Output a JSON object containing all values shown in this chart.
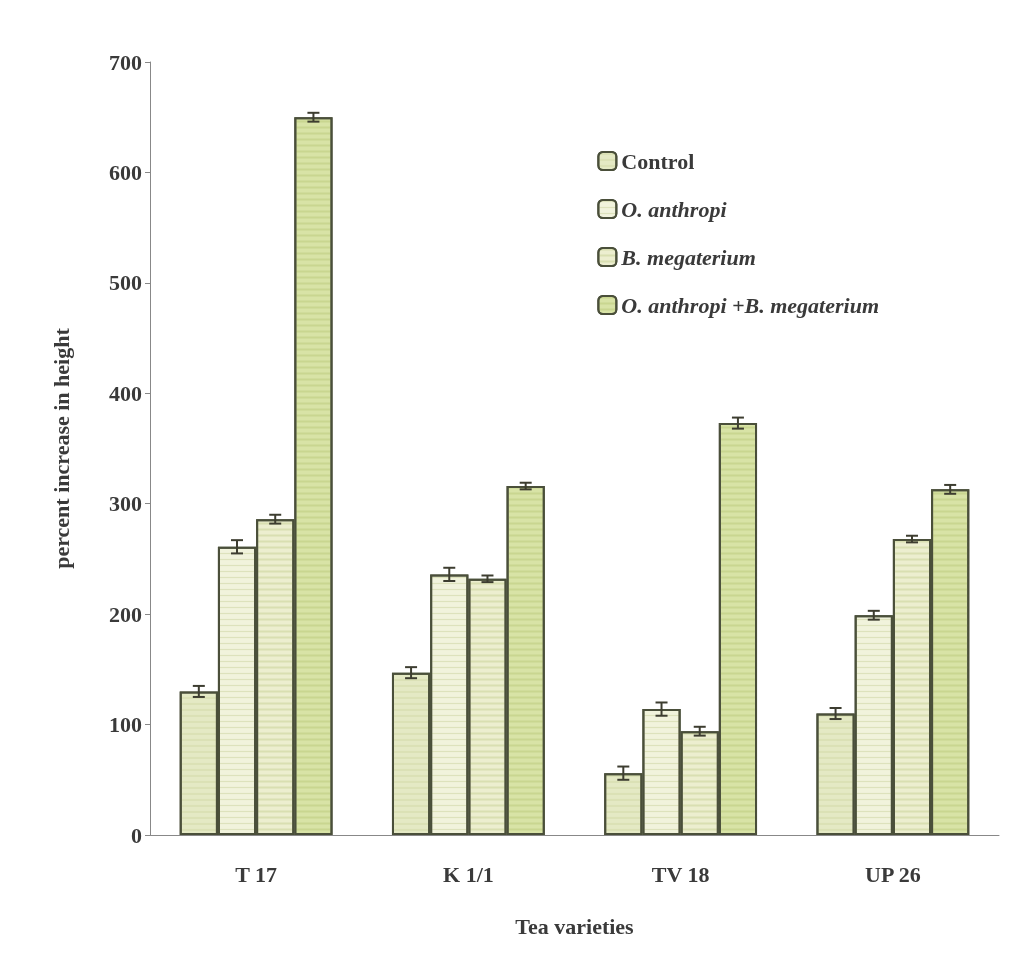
{
  "chart_data": {
    "type": "bar",
    "xlabel": "Tea varieties",
    "ylabel": "percent increase in height",
    "categories": [
      "T 17",
      "K 1/1",
      "TV 18",
      "UP 26"
    ],
    "series": [
      {
        "name": "Control",
        "color": "#e4e9c4",
        "values": [
          130,
          147,
          56,
          110
        ],
        "errors": [
          5,
          5,
          6,
          5
        ]
      },
      {
        "name": "O. anthropi",
        "color": "#f1f3dc",
        "values": [
          261,
          236,
          114,
          199
        ],
        "errors": [
          6,
          6,
          6,
          4
        ]
      },
      {
        "name": "B. megaterium",
        "color": "#eceecf",
        "values": [
          286,
          232,
          94,
          268
        ],
        "errors": [
          4,
          3,
          4,
          3
        ]
      },
      {
        "name": "O. anthropi +B. megaterium",
        "color": "#d8e3a6",
        "values": [
          650,
          316,
          373,
          313
        ],
        "errors": [
          4,
          3,
          5,
          4
        ]
      }
    ],
    "ylim": [
      0,
      700
    ],
    "yticks": [
      0,
      100,
      200,
      300,
      400,
      500,
      600,
      700
    ],
    "grid": false,
    "legend": "top right"
  }
}
